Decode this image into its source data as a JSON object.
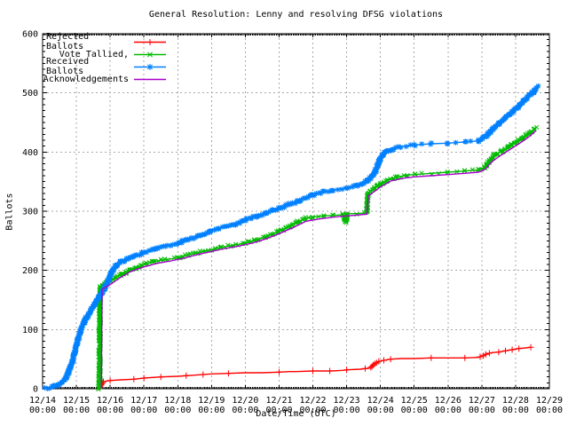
{
  "window": {
    "background": "#ffffff"
  },
  "chart_data": {
    "type": "line",
    "title": "General Resolution: Lenny and resolving DFSG violations",
    "xlabel": "Date/Time (UTC)",
    "ylabel": "Ballots",
    "ylim": [
      0,
      600
    ],
    "xlim": [
      "12/14 00:00",
      "12/29 00:00"
    ],
    "grid": true,
    "legend_position": "top-left",
    "grid_color": "#a8a8a8",
    "y_ticks": [
      0,
      100,
      200,
      300,
      400,
      500,
      600
    ],
    "x_tick_labels": [
      [
        "12/14",
        "00:00"
      ],
      [
        "12/15",
        "00:00"
      ],
      [
        "12/16",
        "00:00"
      ],
      [
        "12/17",
        "00:00"
      ],
      [
        "12/18",
        "00:00"
      ],
      [
        "12/19",
        "00:00"
      ],
      [
        "12/20",
        "00:00"
      ],
      [
        "12/21",
        "00:00"
      ],
      [
        "12/22",
        "00:00"
      ],
      [
        "12/23",
        "00:00"
      ],
      [
        "12/24",
        "00:00"
      ],
      [
        "12/25",
        "00:00"
      ],
      [
        "12/26",
        "00:00"
      ],
      [
        "12/27",
        "00:00"
      ],
      [
        "12/28",
        "00:00"
      ],
      [
        "12/29",
        "00:00"
      ]
    ],
    "series": [
      {
        "name": "Rejected Ballots",
        "color": "#ff0000",
        "marker": "plus",
        "x": [
          15.68,
          15.8,
          16.0,
          16.3,
          16.7,
          17.0,
          17.5,
          18.0,
          18.5,
          19.0,
          19.5,
          20.0,
          20.5,
          21.0,
          21.3,
          21.5,
          22.0,
          22.5,
          22.9,
          23.0,
          23.4,
          23.7,
          23.75,
          23.85,
          23.95,
          24.1,
          24.3,
          24.6,
          25.0,
          25.5,
          26.0,
          26.5,
          26.9,
          27.05,
          27.15,
          27.3,
          27.5,
          27.7,
          27.9,
          28.1,
          28.3,
          28.45
        ],
        "y": [
          2,
          12,
          14,
          15,
          16,
          18,
          20,
          21,
          23,
          25,
          26,
          27,
          27,
          28,
          29,
          29,
          30,
          30,
          31,
          32,
          33,
          35,
          38,
          43,
          46,
          48,
          50,
          51,
          51,
          52,
          52,
          52,
          53,
          56,
          59,
          61,
          62,
          64,
          66,
          68,
          69,
          70
        ]
      },
      {
        "name": "Vote Tallied,",
        "color": "#00bb00",
        "marker": "cross",
        "x": [
          15.68,
          15.7,
          15.74,
          15.85,
          16.0,
          16.15,
          16.3,
          16.5,
          16.8,
          17.0,
          17.3,
          17.6,
          18.0,
          18.3,
          18.6,
          19.0,
          19.3,
          19.6,
          20.0,
          20.3,
          20.6,
          21.0,
          21.3,
          21.6,
          21.8,
          22.0,
          22.3,
          22.6,
          22.9,
          22.97,
          23.02,
          23.3,
          23.55,
          23.6,
          23.63,
          23.8,
          24.0,
          24.2,
          24.5,
          24.8,
          25.0,
          25.5,
          26.0,
          26.5,
          26.9,
          27.1,
          27.25,
          27.4,
          27.6,
          27.8,
          28.0,
          28.2,
          28.4,
          28.6
        ],
        "y": [
          0,
          170,
          172,
          178,
          183,
          187,
          192,
          197,
          205,
          210,
          215,
          218,
          221,
          226,
          230,
          235,
          239,
          242,
          246,
          251,
          257,
          266,
          274,
          283,
          288,
          290,
          292,
          293,
          294,
          281,
          296,
          296,
          297,
          298,
          330,
          338,
          345,
          352,
          358,
          361,
          362,
          364,
          366,
          368,
          370,
          374,
          388,
          396,
          402,
          408,
          416,
          424,
          432,
          440
        ]
      },
      {
        "name": "Received Ballots",
        "color": "#0080ff",
        "marker": "star",
        "x": [
          14.05,
          14.3,
          14.5,
          14.7,
          14.85,
          15.0,
          15.1,
          15.25,
          15.4,
          15.55,
          15.7,
          15.85,
          15.95,
          16.05,
          16.15,
          16.3,
          16.5,
          16.8,
          17.0,
          17.3,
          17.6,
          18.0,
          18.3,
          18.6,
          19.0,
          19.3,
          19.6,
          20.0,
          20.3,
          20.6,
          21.0,
          21.3,
          21.6,
          22.0,
          22.3,
          22.6,
          23.0,
          23.3,
          23.6,
          23.8,
          23.9,
          24.0,
          24.1,
          24.3,
          24.6,
          25.0,
          25.5,
          26.0,
          26.5,
          26.9,
          27.1,
          27.3,
          27.5,
          27.7,
          27.9,
          28.1,
          28.3,
          28.5,
          28.65
        ],
        "y": [
          0,
          3,
          8,
          18,
          40,
          72,
          95,
          115,
          130,
          143,
          157,
          172,
          183,
          198,
          207,
          214,
          219,
          226,
          230,
          236,
          241,
          246,
          252,
          257,
          267,
          272,
          276,
          285,
          291,
          297,
          305,
          312,
          318,
          327,
          332,
          336,
          339,
          343,
          351,
          362,
          375,
          390,
          398,
          404,
          409,
          412,
          414,
          415,
          417,
          419,
          426,
          437,
          448,
          459,
          468,
          478,
          490,
          500,
          510
        ]
      },
      {
        "name": "Acknowledgements",
        "color": "#aa00cc",
        "marker": "none",
        "x": [
          15.74,
          15.76,
          16.0,
          16.3,
          16.6,
          17.0,
          17.4,
          17.8,
          18.2,
          18.6,
          19.0,
          19.4,
          19.8,
          20.2,
          20.6,
          21.0,
          21.4,
          21.8,
          22.2,
          22.6,
          23.0,
          23.4,
          23.6,
          23.64,
          24.0,
          24.3,
          24.7,
          25.0,
          25.5,
          26.0,
          26.5,
          26.9,
          27.1,
          27.3,
          27.5,
          27.8,
          28.1,
          28.4,
          28.6
        ],
        "y": [
          0,
          168,
          176,
          188,
          198,
          206,
          212,
          216,
          221,
          227,
          232,
          237,
          241,
          246,
          253,
          262,
          272,
          283,
          287,
          290,
          292,
          294,
          295,
          326,
          341,
          351,
          356,
          358,
          360,
          362,
          364,
          366,
          371,
          384,
          392,
          403,
          414,
          426,
          436
        ]
      }
    ]
  }
}
